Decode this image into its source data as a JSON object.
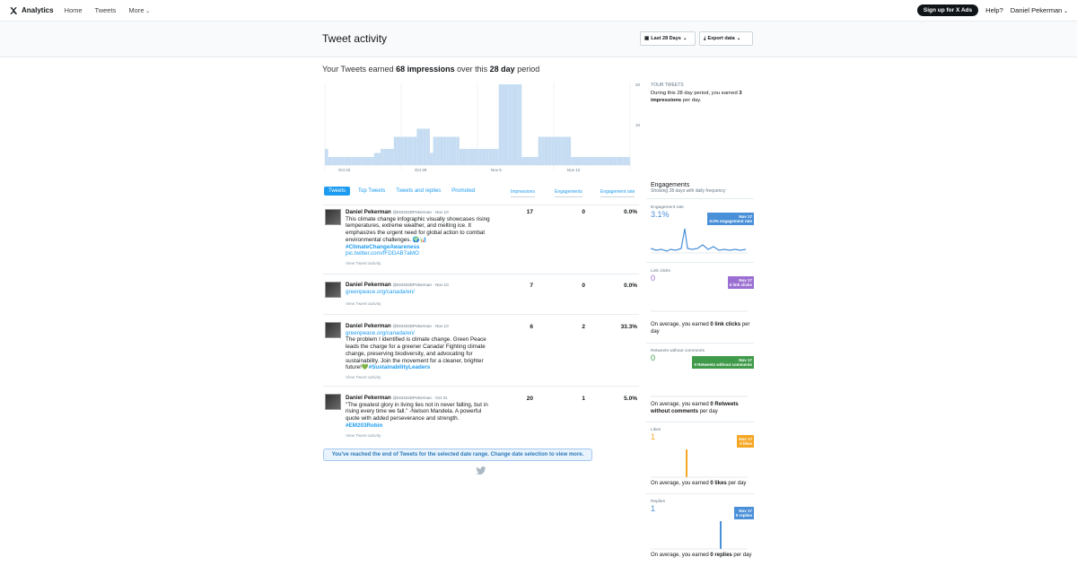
{
  "topbar": {
    "brand": "Analytics",
    "nav": [
      "Home",
      "Tweets",
      "More"
    ],
    "signup": "Sign up for X Ads",
    "help": "Help?",
    "user": "Daniel Pekerman"
  },
  "header": {
    "title": "Tweet activity",
    "date_range": "Last 28 Days",
    "export": "Export data"
  },
  "summary": {
    "pre": "Your Tweets earned",
    "impressions": "68 impressions",
    "mid": "over this",
    "period": "28 day",
    "post": "period"
  },
  "chart_data": {
    "type": "bar",
    "x_ticks": [
      "Oct 22",
      "Oct 29",
      "Nov 5",
      "Nov 12"
    ],
    "y_ticks": [
      "20",
      "10"
    ],
    "ylim": [
      0,
      20
    ],
    "values": [
      4,
      2,
      2,
      2,
      2,
      2,
      2,
      2,
      2,
      2,
      2,
      2,
      2,
      2,
      2,
      3,
      3,
      4,
      4,
      4,
      4,
      7,
      7,
      7,
      7,
      7,
      7,
      7,
      9,
      9,
      9,
      9,
      3,
      7,
      7,
      7,
      7,
      7,
      7,
      7,
      7,
      4,
      4,
      4,
      4,
      4,
      4,
      4,
      4,
      4,
      4,
      4,
      4,
      20,
      20,
      20,
      20,
      20,
      20,
      20,
      2,
      2,
      2,
      2,
      2,
      7,
      7,
      7,
      7,
      7,
      7,
      7,
      7,
      7,
      7,
      2,
      2,
      2,
      2,
      2,
      2,
      2,
      2,
      2,
      2,
      2,
      2,
      2,
      2,
      2,
      2,
      2,
      2
    ]
  },
  "side_summary": {
    "label": "YOUR TWEETS",
    "text_pre": "During this 28 day period, you earned",
    "value": "3 impressions",
    "text_post": "per day."
  },
  "tabs": [
    "Tweets",
    "Top Tweets",
    "Tweets and replies",
    "Promoted"
  ],
  "columns": [
    "Impressions",
    "Engagements",
    "Engagement rate"
  ],
  "tweets": [
    {
      "name": "Daniel Pekerman",
      "handle": "@EM203DPekerman · Nov 10",
      "text": "This climate change infographic visually showcases rising temperatures, extreme weather, and melting ice. It emphasizes the urgent need for global action to combat environmental challenges. 🌍📊",
      "tag": "#ClimateChangeAwareness",
      "link": "pic.twitter.com/fFDDAB7aMO",
      "view": "View Tweet activity",
      "impressions": "17",
      "engagements": "0",
      "rate": "0.0%"
    },
    {
      "name": "Daniel Pekerman",
      "handle": "@EM203DPekerman · Nov 10",
      "text": "",
      "tag": "",
      "link": "greenpeace.org/canada/en/",
      "view": "View Tweet activity",
      "impressions": "7",
      "engagements": "0",
      "rate": "0.0%"
    },
    {
      "name": "Daniel Pekerman",
      "handle": "@EM203DPekerman · Nov 10",
      "link": "greenpeace.org/canada/en/",
      "text": "The problem I identified is climate change. Green Peace leads the charge for a greener Canada! Fighting climate change, preserving biodiversity, and advocating for sustainability. Join the movement for a cleaner, brighter future!💚",
      "tag": "#SustainabilityLeaders",
      "view": "View Tweet activity",
      "impressions": "6",
      "engagements": "2",
      "rate": "33.3%"
    },
    {
      "name": "Daniel Pekerman",
      "handle": "@EM203DPekerman · Oct 31",
      "text": "\"The greatest glory in living lies not in never falling, but in rising every time we fall.\" -Nelson Mandela. A powerful quote with added perseverance and strength.",
      "tag": "#EM203Robin",
      "link": "",
      "view": "View Tweet activity",
      "impressions": "20",
      "engagements": "1",
      "rate": "5.0%"
    }
  ],
  "end_message": "You've reached the end of Tweets for the selected date range. Change date selection to view more.",
  "engagements": {
    "title": "Engagements",
    "subtitle": "Showing 28 days with daily frequency",
    "metrics": [
      {
        "label": "Engagement rate",
        "value": "3.1%",
        "badge_date": "Nov 17",
        "badge_text": "0.0% engagement rate",
        "color": "#4a90d9",
        "avg": ""
      },
      {
        "label": "Link clicks",
        "value": "0",
        "badge_date": "Nov 17",
        "badge_text": "0 link clicks",
        "color": "#9b6fd1",
        "avg_pre": "On average, you earned",
        "avg_val": "0 link clicks",
        "avg_post": "per day"
      },
      {
        "label": "Retweets without comments",
        "value": "0",
        "badge_date": "Nov 17",
        "badge_text": "0 Retweets without comments",
        "color": "#3f9a4a",
        "avg_pre": "On average, you earned",
        "avg_val": "0 Retweets without comments",
        "avg_post": "per day"
      },
      {
        "label": "Likes",
        "value": "1",
        "badge_date": "Nov 17",
        "badge_text": "0 likes",
        "color": "#f5a623",
        "avg_pre": "On average, you earned",
        "avg_val": "0 likes",
        "avg_post": "per day"
      },
      {
        "label": "Replies",
        "value": "1",
        "badge_date": "Nov 17",
        "badge_text": "0 replies",
        "color": "#4a90d9",
        "avg_pre": "On average, you earned",
        "avg_val": "0 replies",
        "avg_post": "per day"
      }
    ]
  }
}
